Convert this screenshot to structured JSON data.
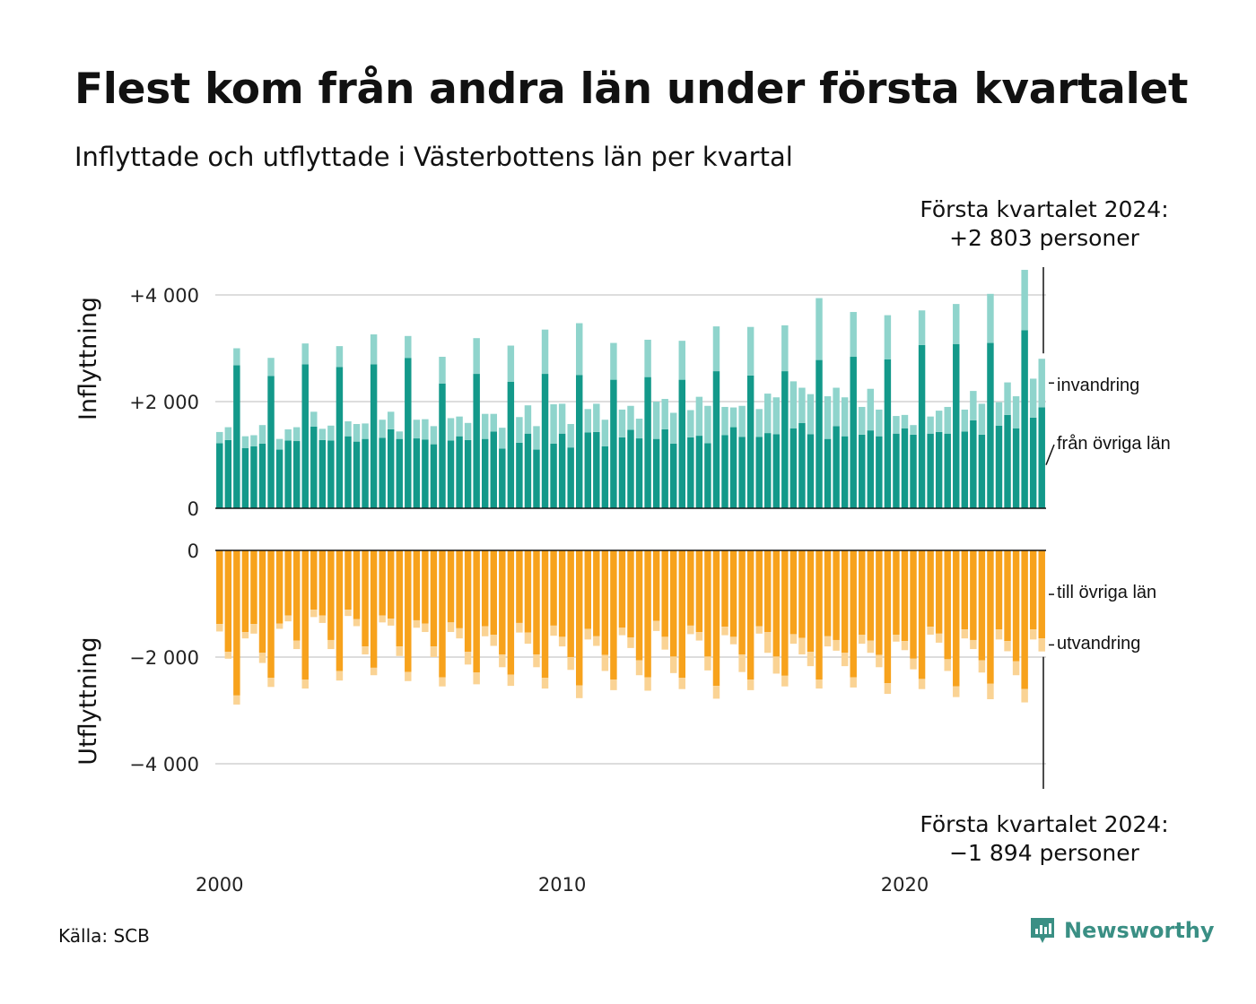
{
  "title": "Flest kom från andra län under första kvartalet",
  "subtitle": "Inflyttade och utflyttade i Västerbottens län per kvartal",
  "source": "Källa: SCB",
  "brand": "Newsworthy",
  "annotation_top": {
    "line1": "Första kvartalet 2024:",
    "line2": "+2 803 personer"
  },
  "annotation_bottom": {
    "line1": "Första kvartalet 2024:",
    "line2": "−1 894 personer"
  },
  "colors": {
    "inflow_domestic": "#13998a",
    "inflow_immigration": "#8fd4cc",
    "outflow_domestic": "#f7a21c",
    "outflow_emigration": "#fad394",
    "brand": "#3a8f84"
  },
  "chart_data": [
    {
      "type": "bar",
      "stacked": true,
      "panel": "top",
      "ylabel": "Inflyttning",
      "ylim": [
        0,
        4500
      ],
      "yticks": [
        {
          "value": 0,
          "label": "0"
        },
        {
          "value": 2000,
          "label": "+2 000"
        },
        {
          "value": 4000,
          "label": "+4 000"
        }
      ],
      "grid": true,
      "x_start": "2000 Q1",
      "x_ticks": [
        {
          "label": "2000",
          "index": 0
        },
        {
          "label": "2010",
          "index": 40
        },
        {
          "label": "2020",
          "index": 80
        }
      ],
      "series": [
        {
          "name": "från övriga län",
          "color": "#13998a",
          "values": [
            1220,
            1280,
            2680,
            1130,
            1160,
            1210,
            2480,
            1100,
            1270,
            1260,
            2700,
            1530,
            1280,
            1270,
            2650,
            1350,
            1250,
            1300,
            2700,
            1320,
            1480,
            1300,
            2820,
            1310,
            1290,
            1200,
            2340,
            1270,
            1350,
            1280,
            2520,
            1300,
            1440,
            1120,
            2370,
            1230,
            1400,
            1100,
            2520,
            1210,
            1400,
            1140,
            2500,
            1420,
            1430,
            1160,
            2410,
            1330,
            1470,
            1310,
            2460,
            1300,
            1480,
            1210,
            2410,
            1330,
            1360,
            1220,
            2570,
            1370,
            1520,
            1340,
            2490,
            1340,
            1410,
            1390,
            2570,
            1500,
            1600,
            1390,
            2780,
            1300,
            1540,
            1350,
            2840,
            1380,
            1460,
            1350,
            2790,
            1400,
            1500,
            1380,
            3060,
            1400,
            1430,
            1400,
            3080,
            1440,
            1650,
            1380,
            3100,
            1550,
            1750,
            1500,
            3340,
            1700,
            1894
          ]
        },
        {
          "name": "invandring",
          "color": "#8fd4cc",
          "values": [
            210,
            240,
            320,
            220,
            210,
            350,
            340,
            200,
            210,
            260,
            390,
            280,
            210,
            280,
            390,
            280,
            330,
            290,
            560,
            340,
            330,
            140,
            410,
            350,
            380,
            340,
            500,
            420,
            370,
            320,
            670,
            470,
            330,
            390,
            680,
            480,
            530,
            440,
            830,
            740,
            560,
            440,
            970,
            440,
            530,
            500,
            690,
            520,
            450,
            370,
            700,
            700,
            570,
            580,
            730,
            510,
            730,
            700,
            840,
            530,
            370,
            580,
            910,
            520,
            740,
            690,
            860,
            880,
            660,
            750,
            1160,
            800,
            720,
            730,
            840,
            520,
            780,
            500,
            830,
            330,
            250,
            180,
            650,
            320,
            400,
            500,
            750,
            410,
            550,
            580,
            920,
            440,
            610,
            600,
            1130,
            730,
            909
          ]
        }
      ]
    },
    {
      "type": "bar",
      "stacked": true,
      "panel": "bottom",
      "ylabel": "Utflyttning",
      "ylim": [
        -4500,
        0
      ],
      "yticks": [
        {
          "value": 0,
          "label": "0"
        },
        {
          "value": -2000,
          "label": "−2 000"
        },
        {
          "value": -4000,
          "label": "−4 000"
        }
      ],
      "grid": true,
      "series": [
        {
          "name": "till övriga län",
          "color": "#f7a21c",
          "values": [
            -1380,
            -1900,
            -2720,
            -1530,
            -1380,
            -1920,
            -2390,
            -1370,
            -1220,
            -1690,
            -2420,
            -1110,
            -1220,
            -1680,
            -2260,
            -1110,
            -1290,
            -1800,
            -2200,
            -1220,
            -1280,
            -1800,
            -2280,
            -1310,
            -1370,
            -1800,
            -2380,
            -1350,
            -1460,
            -1900,
            -2290,
            -1420,
            -1580,
            -1950,
            -2330,
            -1360,
            -1540,
            -1950,
            -2390,
            -1410,
            -1620,
            -2000,
            -2530,
            -1470,
            -1610,
            -1960,
            -2420,
            -1450,
            -1630,
            -2060,
            -2380,
            -1320,
            -1620,
            -1990,
            -2390,
            -1410,
            -1530,
            -1990,
            -2540,
            -1430,
            -1620,
            -1950,
            -2420,
            -1420,
            -1530,
            -1990,
            -2350,
            -1570,
            -1640,
            -1900,
            -2420,
            -1610,
            -1680,
            -1920,
            -2380,
            -1580,
            -1690,
            -1960,
            -2490,
            -1580,
            -1700,
            -2030,
            -2410,
            -1430,
            -1560,
            -2040,
            -2550,
            -1480,
            -1680,
            -2060,
            -2500,
            -1480,
            -1700,
            -2080,
            -2600,
            -1480,
            -1650
          ]
        },
        {
          "name": "utvandring",
          "color": "#fad394",
          "values": [
            -140,
            -130,
            -170,
            -120,
            -180,
            -190,
            -170,
            -100,
            -110,
            -160,
            -170,
            -140,
            -140,
            -170,
            -180,
            -120,
            -130,
            -150,
            -140,
            -130,
            -130,
            -180,
            -170,
            -140,
            -160,
            -200,
            -170,
            -180,
            -190,
            -240,
            -220,
            -190,
            -210,
            -240,
            -210,
            -180,
            -210,
            -240,
            -200,
            -190,
            -180,
            -240,
            -240,
            -200,
            -180,
            -300,
            -200,
            -140,
            -200,
            -280,
            -250,
            -190,
            -240,
            -310,
            -210,
            -160,
            -160,
            -260,
            -240,
            -160,
            -140,
            -330,
            -200,
            -140,
            -390,
            -320,
            -200,
            -180,
            -310,
            -270,
            -170,
            -190,
            -200,
            -250,
            -190,
            -170,
            -230,
            -230,
            -200,
            -130,
            -170,
            -200,
            -190,
            -150,
            -170,
            -220,
            -200,
            -170,
            -170,
            -230,
            -290,
            -190,
            -190,
            -260,
            -250,
            -190,
            -244
          ]
        }
      ]
    }
  ]
}
